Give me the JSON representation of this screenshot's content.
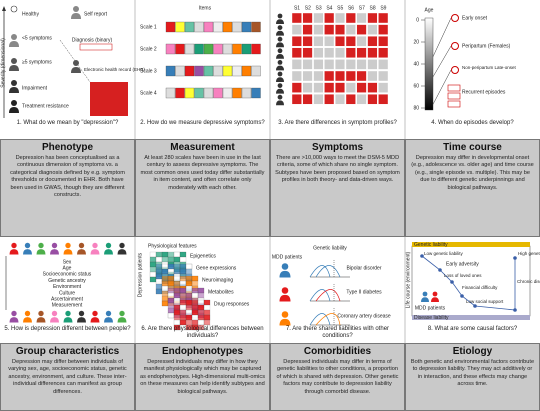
{
  "panels": [
    {
      "caption": "1. What do we mean by \"depression\"?",
      "heading": "Phenotype",
      "text": "Depression has been conceptualised as a continuous dimension of symptoms vs. a categorical diagnosis defined by e.g. symptom thresholds or documented in EHR. Both have been used in GWAS, though they are different constructs.",
      "labels": [
        "Healthy",
        "Self report",
        "<5 symptoms",
        "Diagnosis (binary)",
        "≥5 symptoms",
        "Electronic health record (EHR)",
        "Impairment",
        "Treatment resistance",
        "Severity (dimensional)"
      ]
    },
    {
      "caption": "2. How do we measure depressive symptoms?",
      "heading": "Measurement",
      "text": "At least 280 scales have been in use in the last century to assess depressive symptoms. The most common ones used today differ substantially in item content, and often correlate only moderately with each other.",
      "labels": [
        "Items",
        "Scale 1",
        "Scale 2",
        "Scale 3",
        "Scale 4"
      ]
    },
    {
      "caption": "3. Are there differences in symptom profiles?",
      "heading": "Symptoms",
      "text": "There are >10,000 ways to meet the DSM-5 MDD criteria, some of which share no single symptom. Subtypes have been proposed based on symptom profiles in both theory- and data-driven ways.",
      "labels": [
        "S1",
        "S2",
        "S3",
        "S4",
        "S5",
        "S6",
        "S7",
        "S8",
        "S9"
      ]
    },
    {
      "caption": "4. When do episodes develop?",
      "heading": "Time course",
      "text": "Depression may differ in developmental onset (e.g., adolescence vs. older age) and time course (e.g., single episode vs. multiple). This may be due to different genetic underpinnings and biological pathways.",
      "labels": [
        "Age",
        "Early onset",
        "Peripartum (Females)",
        "Non-peripartum Late-onset",
        "Recurrent episodes"
      ],
      "ticks": [
        0,
        20,
        40,
        60,
        80
      ]
    },
    {
      "caption": "5. How is depression different between people?",
      "heading": "Group characteristics",
      "text": "Depression may differ between individuals of varying sex, age, socioeconomic status, genetic ancestry, environment, and culture. These inter-individual differences can manifest as group differences.",
      "labels": [
        "Sex",
        "Age",
        "Socioeconomic status",
        "Genetic ancestry",
        "Environment",
        "Culture",
        "Ascertainment",
        "Measurement"
      ]
    },
    {
      "caption": "6. Are there physiological differences between individuals?",
      "heading": "Endophenotypes",
      "text": "Depressed individuals may differ in how they manifest physiologically which may be captured as endophenotypes. High-dimensional multi-omics on these measures can help identify subtypes and biological pathways.",
      "labels": [
        "Physiological features",
        "Depression patients",
        "Epigenetics",
        "Gene expressions",
        "Neuroimaging",
        "Metabolites",
        "Drug responses"
      ]
    },
    {
      "caption": "7. Are there shared liabilities with other conditions?",
      "heading": "Comorbidities",
      "text": "Depressed individuals may differ in terms of genetic liabilities to other conditions, a proportion of which is shared with depression. Other genetic factors may contribute to depression liability through comorbid disease.",
      "labels": [
        "Genetic liability",
        "MDD patients",
        "Bipolar disorder",
        "Type II diabetes",
        "Coronary artery disease"
      ]
    },
    {
      "caption": "8. What are some causal factors?",
      "heading": "Etiology",
      "text": "Both genetic and environmental factors contribute to depression liability. They may act additively or in interaction, and these effects may change across time.",
      "labels": [
        "Genetic liability",
        "Disease liability",
        "Life course (environment)",
        "Low genetic liability",
        "Early adversity",
        "Loss of loved ones",
        "Financial difficulty",
        "Low social support",
        "High genetic liability",
        "Chronic disease",
        "MDD patients"
      ]
    }
  ]
}
